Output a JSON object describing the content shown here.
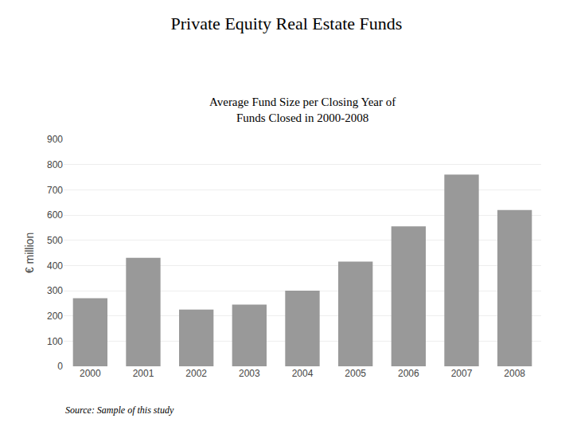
{
  "chart_data": {
    "type": "bar",
    "title": "Private Equity Real Estate Funds",
    "subtitle": [
      "Average Fund Size per Closing Year of",
      "Funds Closed in 2000-2008"
    ],
    "ylabel": "€ million",
    "annotations": [
      "Source: Sample of this study"
    ],
    "categories": [
      "2000",
      "2001",
      "2002",
      "2003",
      "2004",
      "2005",
      "2006",
      "2007",
      "2008"
    ],
    "values": [
      270,
      430,
      225,
      245,
      300,
      415,
      555,
      760,
      620
    ],
    "color": "#999999",
    "ylim": [
      0,
      900
    ],
    "yticks": [
      0,
      100,
      200,
      300,
      400,
      500,
      600,
      700,
      800,
      900
    ],
    "grid": true
  }
}
